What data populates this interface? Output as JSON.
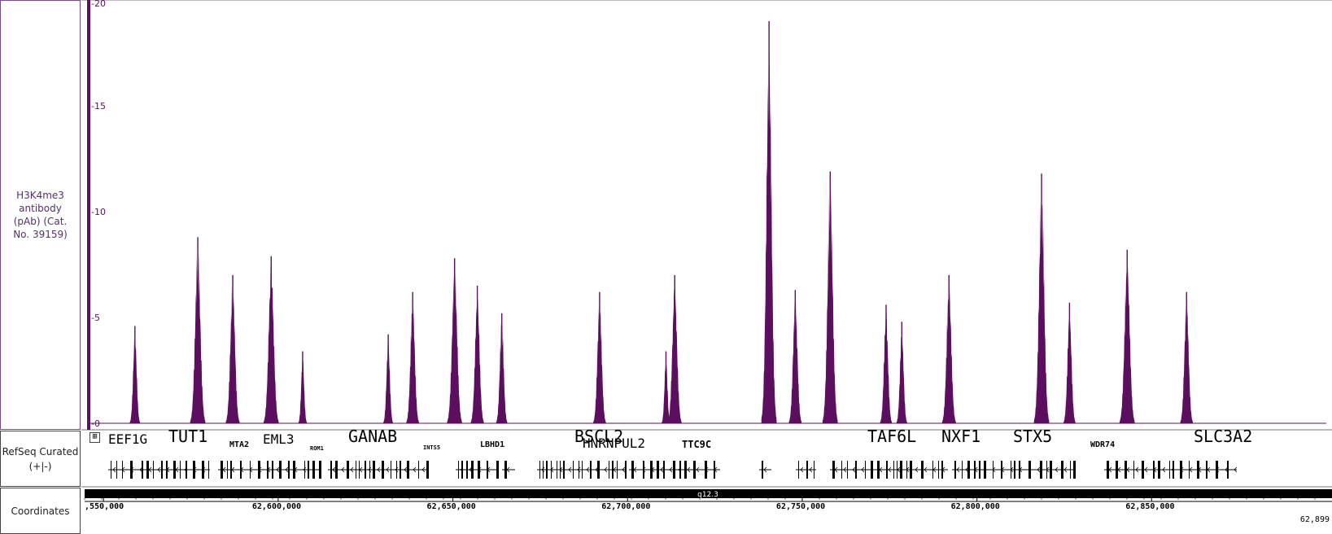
{
  "track_label": "H3K4me3 antibody (pAb) (Cat. No. 39159)",
  "refseq_label": "RefSeq Curated (+|-)",
  "coords_label": "Coordinates",
  "expand_glyph": "⊞",
  "band_label": "q12.3",
  "end_coordinate": "62,899",
  "colors": {
    "signal": "#5b0f5e",
    "axis": "#5b0f5e",
    "gene": "#000000"
  },
  "gene_labels": [
    {
      "name": "EEF1G",
      "size": "large"
    },
    {
      "name": "TUT1",
      "size": "xlarge"
    },
    {
      "name": "MTA2",
      "size": "small"
    },
    {
      "name": "EML3",
      "size": "large"
    },
    {
      "name": "ROM1",
      "size": "tiny"
    },
    {
      "name": "GANAB",
      "size": "xlarge"
    },
    {
      "name": "INTS5",
      "size": "tiny"
    },
    {
      "name": "LBHD1",
      "size": "small"
    },
    {
      "name": "BSCL2",
      "size": "xlarge"
    },
    {
      "name": "HNRNPUL2",
      "size": "large"
    },
    {
      "name": "TTC9C",
      "size": "medium"
    },
    {
      "name": "TAF6L",
      "size": "xlarge"
    },
    {
      "name": "NXF1",
      "size": "xlarge"
    },
    {
      "name": "STX5",
      "size": "xlarge"
    },
    {
      "name": "WDR74",
      "size": "small"
    },
    {
      "name": "SLC3A2",
      "size": "xlarge"
    }
  ],
  "chart_data": {
    "type": "area",
    "title": "",
    "xlabel": "",
    "ylabel": "",
    "ylim": [
      0,
      20
    ],
    "y_ticks": [
      0,
      5,
      10,
      15,
      20
    ],
    "y_tick_labels": [
      "-0",
      "-5",
      "-10",
      "-15",
      "-20"
    ],
    "x_range": [
      62546000,
      62900000
    ],
    "x_ticks": [
      62550000,
      62600000,
      62650000,
      62700000,
      62750000,
      62800000,
      62850000
    ],
    "x_tick_labels": [
      ",550,000",
      "62,600,000",
      "62,650,000",
      "62,700,000",
      "62,750,000",
      "62,800,000",
      "62,850,000"
    ],
    "peaks": [
      {
        "x": 62559000,
        "y": 4.6
      },
      {
        "x": 62577000,
        "y": 8.8
      },
      {
        "x": 62587000,
        "y": 7.0
      },
      {
        "x": 62598000,
        "y": 7.9
      },
      {
        "x": 62607000,
        "y": 3.4
      },
      {
        "x": 62631500,
        "y": 4.2
      },
      {
        "x": 62638500,
        "y": 6.2
      },
      {
        "x": 62650500,
        "y": 7.8
      },
      {
        "x": 62657000,
        "y": 6.5
      },
      {
        "x": 62664000,
        "y": 5.2
      },
      {
        "x": 62692000,
        "y": 6.2
      },
      {
        "x": 62711000,
        "y": 3.4
      },
      {
        "x": 62713500,
        "y": 7.0
      },
      {
        "x": 62740500,
        "y": 19.0
      },
      {
        "x": 62748000,
        "y": 6.3
      },
      {
        "x": 62758000,
        "y": 11.9
      },
      {
        "x": 62774000,
        "y": 5.6
      },
      {
        "x": 62778500,
        "y": 4.8
      },
      {
        "x": 62792000,
        "y": 7.0
      },
      {
        "x": 62818500,
        "y": 11.8
      },
      {
        "x": 62826500,
        "y": 5.7
      },
      {
        "x": 62843000,
        "y": 8.2
      },
      {
        "x": 62860000,
        "y": 6.2
      }
    ]
  }
}
